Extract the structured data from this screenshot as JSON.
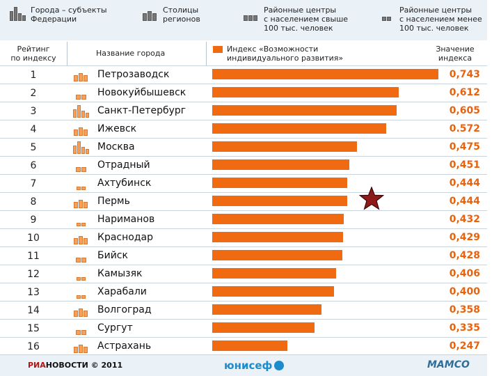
{
  "legend": [
    {
      "label": "Города – субъекты\nФедерации",
      "icon": "federal-city-icon"
    },
    {
      "label": "Столицы\nрегионов",
      "icon": "regional-capital-icon"
    },
    {
      "label": "Районные центры\nс населением свыше\n100 тыс. человек",
      "icon": "district-center-large-icon"
    },
    {
      "label": "Районные центры\nс населением менее\n100 тыс. человек",
      "icon": "district-center-small-icon"
    }
  ],
  "header": {
    "rank": "Рейтинг\nпо индексу",
    "name": "Название города",
    "index": "Индекс «Возможности\nиндивидуального развития»",
    "value": "Значение\nиндекса"
  },
  "colors": {
    "bar": "#f06a12",
    "value_text": "#e8620e",
    "band": "#eaf1f7",
    "star": "#8e1a1a"
  },
  "chart_data": {
    "type": "bar",
    "orientation": "horizontal",
    "title": "Индекс «Возможности индивидуального развития»",
    "xlabel": "Значение индекса",
    "ylabel": "Название города",
    "xlim": [
      0,
      0.743
    ],
    "categories": [
      "Петрозаводск",
      "Новокуйбышевск",
      "Санкт-Петербург",
      "Ижевск",
      "Москва",
      "Отрадный",
      "Ахтубинск",
      "Пермь",
      "Нариманов",
      "Краснодар",
      "Бийск",
      "Камызяк",
      "Харабали",
      "Волгоград",
      "Сургут",
      "Астрахань"
    ],
    "values": [
      0.743,
      0.612,
      0.605,
      0.572,
      0.475,
      0.451,
      0.444,
      0.444,
      0.432,
      0.429,
      0.428,
      0.406,
      0.4,
      0.358,
      0.335,
      0.247
    ],
    "value_labels": [
      "0,743",
      "0,612",
      "0,605",
      "0.572",
      "0,475",
      "0,451",
      "0,444",
      "0,444",
      "0,432",
      "0,429",
      "0,428",
      "0,406",
      "0,400",
      "0,358",
      "0,335",
      "0,247"
    ],
    "ranks": [
      "1",
      "2",
      "3",
      "4",
      "5",
      "6",
      "7",
      "8",
      "9",
      "10",
      "11",
      "12",
      "13",
      "14",
      "15",
      "16"
    ],
    "city_types": [
      "capital",
      "district-large",
      "federal",
      "capital",
      "federal",
      "district-large",
      "district-small",
      "capital",
      "district-small",
      "capital",
      "district-large",
      "district-small",
      "district-small",
      "capital",
      "district-large",
      "capital"
    ]
  },
  "footer": {
    "ria_a": "РИА",
    "ria_b": "НОВОСТИ",
    "copyright": "© 2011",
    "unicef": "юнисеф",
    "mamco": "МАМСО"
  }
}
